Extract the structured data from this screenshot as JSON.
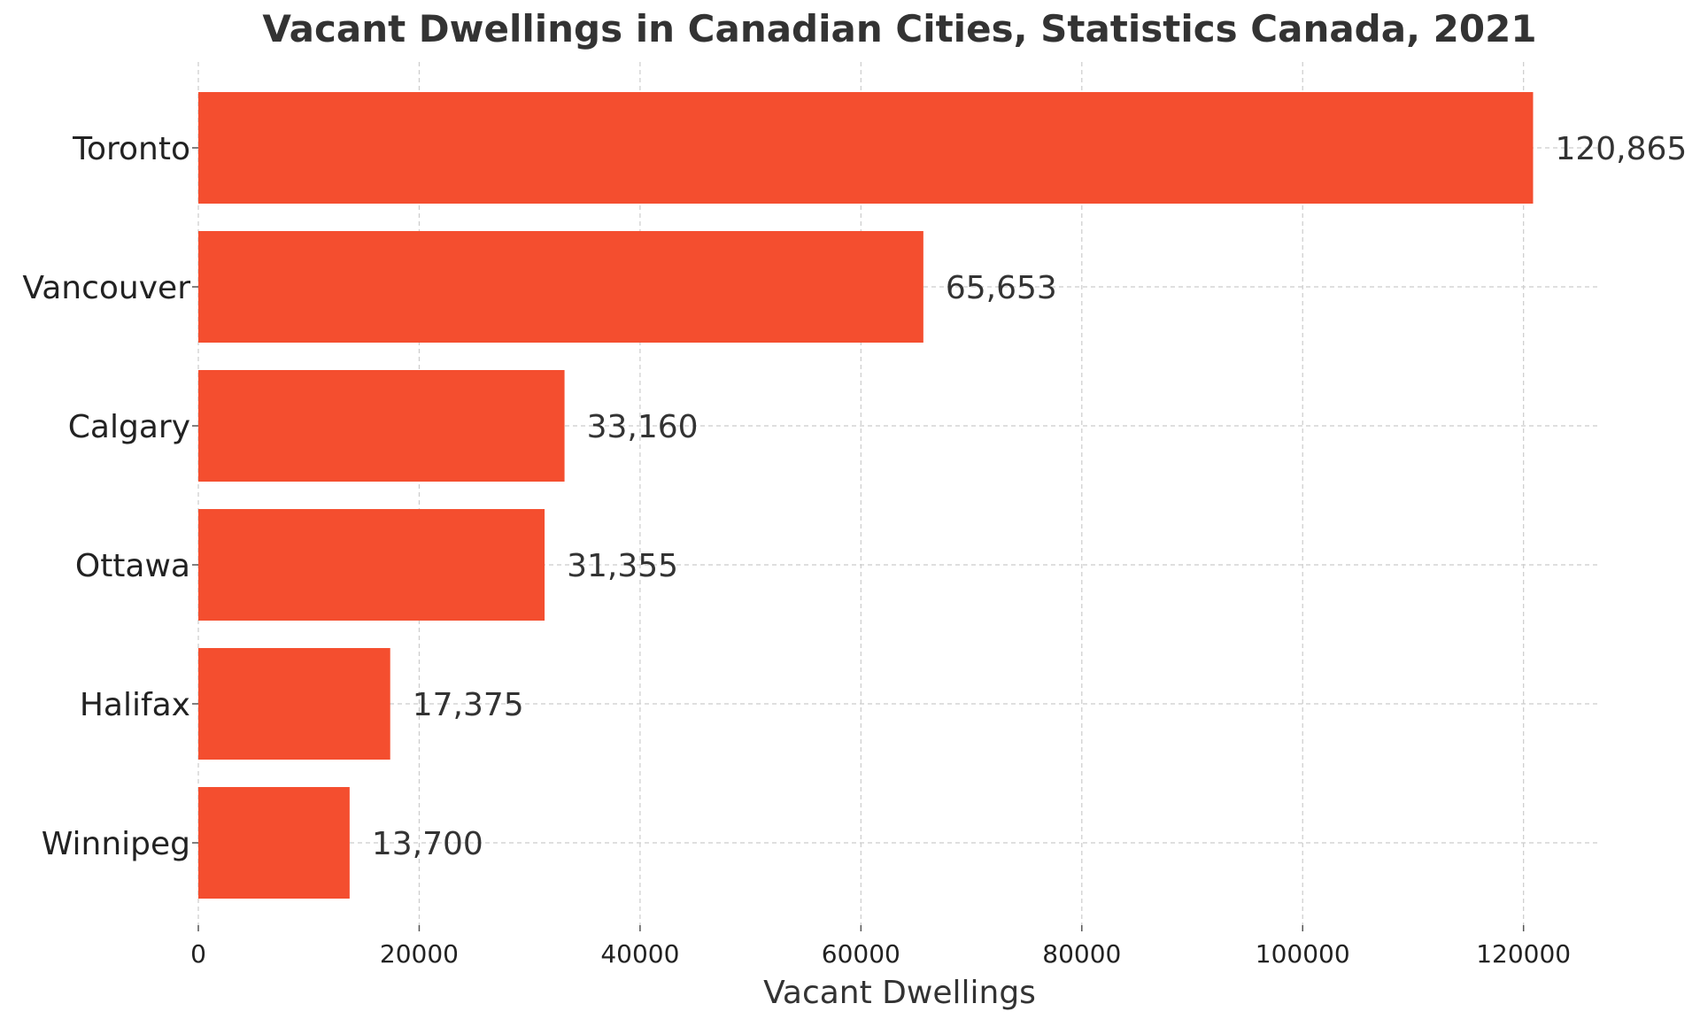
{
  "chart_data": {
    "type": "bar",
    "orientation": "horizontal",
    "title": "Vacant Dwellings in Canadian Cities, Statistics Canada, 2021",
    "xlabel": "Vacant Dwellings",
    "ylabel": "",
    "categories": [
      "Toronto",
      "Vancouver",
      "Calgary",
      "Ottawa",
      "Halifax",
      "Winnipeg"
    ],
    "values": [
      120865,
      65653,
      33160,
      31355,
      17375,
      13700
    ],
    "data_labels": [
      "120,865",
      "65,653",
      "33,160",
      "31,355",
      "17,375",
      "13,700"
    ],
    "xlim": [
      0,
      127000
    ],
    "x_ticks": [
      0,
      20000,
      40000,
      60000,
      80000,
      100000,
      120000
    ],
    "x_tick_labels": [
      "0",
      "20000",
      "40000",
      "60000",
      "80000",
      "100000",
      "120000"
    ],
    "grid": true,
    "bar_color": "#f44e2f",
    "legend": "none"
  }
}
